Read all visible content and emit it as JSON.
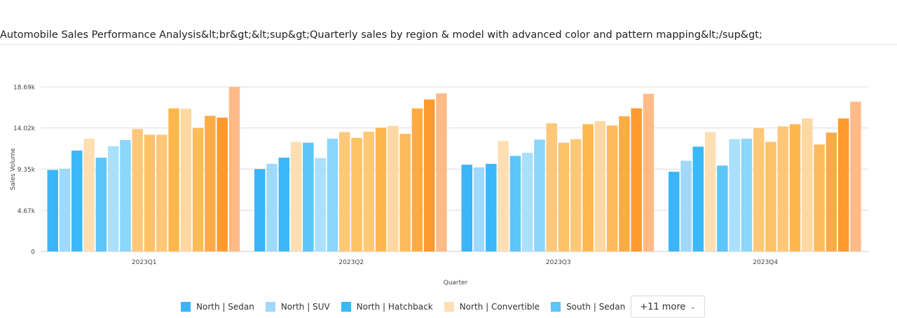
{
  "title": "Automobile Sales Performance Analysis&lt;br&gt;&lt;sup&gt;Quarterly sales by region & model with advanced color and pattern mapping&lt;/sup&gt;",
  "legend": {
    "items": [
      {
        "label": "North | Sedan",
        "color": "#3bb4f8"
      },
      {
        "label": "North | SUV",
        "color": "#9fd9fb"
      },
      {
        "label": "North | Hatchback",
        "color": "#3ab8f7"
      },
      {
        "label": "North | Convertible",
        "color": "#fedfb3"
      },
      {
        "label": "South | Sedan",
        "color": "#5cc6f9"
      }
    ],
    "more_label": "+11 more",
    "more_icon": "chevron-down-icon"
  },
  "chart_data": {
    "type": "bar",
    "xlabel": "Quarter",
    "ylabel": "Sales Volume",
    "ylim": [
      0,
      18690
    ],
    "yticks": [
      0,
      4670,
      9350,
      14020,
      18690
    ],
    "ytick_labels": [
      "0",
      "4.67k",
      "9.35k",
      "14.02k",
      "18.69k"
    ],
    "grid": true,
    "legend_position": "bottom",
    "categories": [
      "2023Q1",
      "2023Q2",
      "2023Q3",
      "2023Q4"
    ],
    "series": [
      {
        "name": "North | Sedan",
        "color": "#3bb4f8",
        "values": [
          9250,
          9350,
          9850,
          9050
        ]
      },
      {
        "name": "North | SUV",
        "color": "#9fd9fb",
        "values": [
          9400,
          9950,
          9550,
          10300
        ]
      },
      {
        "name": "North | Hatchback",
        "color": "#3ab8f7",
        "values": [
          11450,
          10650,
          9950,
          11900
        ]
      },
      {
        "name": "North | Convertible",
        "color": "#fedfb3",
        "values": [
          12800,
          12450,
          12550,
          13550
        ]
      },
      {
        "name": "South | Sedan",
        "color": "#5cc6f9",
        "values": [
          10650,
          12350,
          10850,
          9750
        ]
      },
      {
        "name": "",
        "color": "#a9e0fc",
        "values": [
          11950,
          10600,
          11200,
          12750
        ]
      },
      {
        "name": "",
        "color": "#8bd6fa",
        "values": [
          12650,
          12800,
          12700,
          12800
        ]
      },
      {
        "name": "",
        "color": "#fec87a",
        "values": [
          13900,
          13550,
          14550,
          14000
        ]
      },
      {
        "name": "",
        "color": "#fec165",
        "values": [
          13250,
          12900,
          12350,
          12450
        ]
      },
      {
        "name": "",
        "color": "#fec878",
        "values": [
          13250,
          13600,
          12750,
          14200
        ]
      },
      {
        "name": "",
        "color": "#feb74c",
        "values": [
          16250,
          14050,
          14450,
          14450
        ]
      },
      {
        "name": "",
        "color": "#fed8a0",
        "values": [
          16200,
          14250,
          14800,
          15100
        ]
      },
      {
        "name": "",
        "color": "#febb5c",
        "values": [
          14000,
          13350,
          14300,
          12150
        ]
      },
      {
        "name": "",
        "color": "#feab46",
        "values": [
          15400,
          16250,
          15350,
          13500
        ]
      },
      {
        "name": "",
        "color": "#fe9a2e",
        "values": [
          15200,
          17250,
          16250,
          15100
        ]
      },
      {
        "name": "",
        "color": "#febb88",
        "values": [
          18690,
          17950,
          17900,
          17000
        ]
      }
    ]
  }
}
